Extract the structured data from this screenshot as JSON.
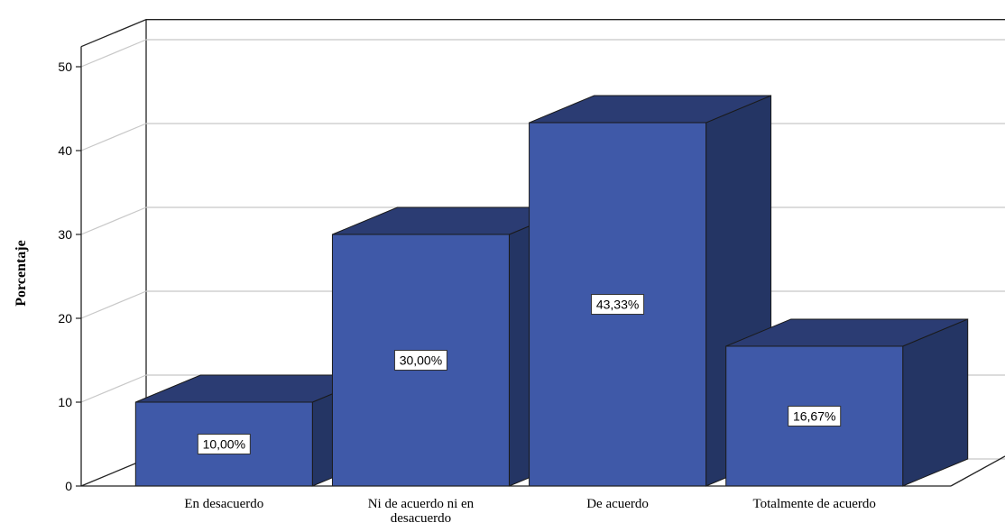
{
  "chart_data": {
    "type": "bar",
    "three_d": true,
    "categories": [
      "En desacuerdo",
      "Ni de acuerdo ni en desacuerdo",
      "De acuerdo",
      "Totalmente de acuerdo"
    ],
    "category_label_lines": [
      [
        "En desacuerdo"
      ],
      [
        "Ni de acuerdo ni en",
        "desacuerdo"
      ],
      [
        "De acuerdo"
      ],
      [
        "Totalmente de acuerdo"
      ]
    ],
    "values": [
      10.0,
      30.0,
      43.33,
      16.67
    ],
    "data_labels": [
      "10,00%",
      "30,00%",
      "43,33%",
      "16,67%"
    ],
    "ylabel": "Porcentaje",
    "xlabel": "",
    "ylim": [
      0,
      50
    ],
    "yticks": [
      "0",
      "10",
      "20",
      "30",
      "40",
      "50"
    ],
    "grid": true,
    "colors": {
      "bar_front": "#3f59a8",
      "bar_top": "#2b3c73",
      "bar_side": "#243564",
      "edge": "#1a1a1a",
      "grid": "#c8c8c8",
      "axis": "#222222"
    }
  }
}
